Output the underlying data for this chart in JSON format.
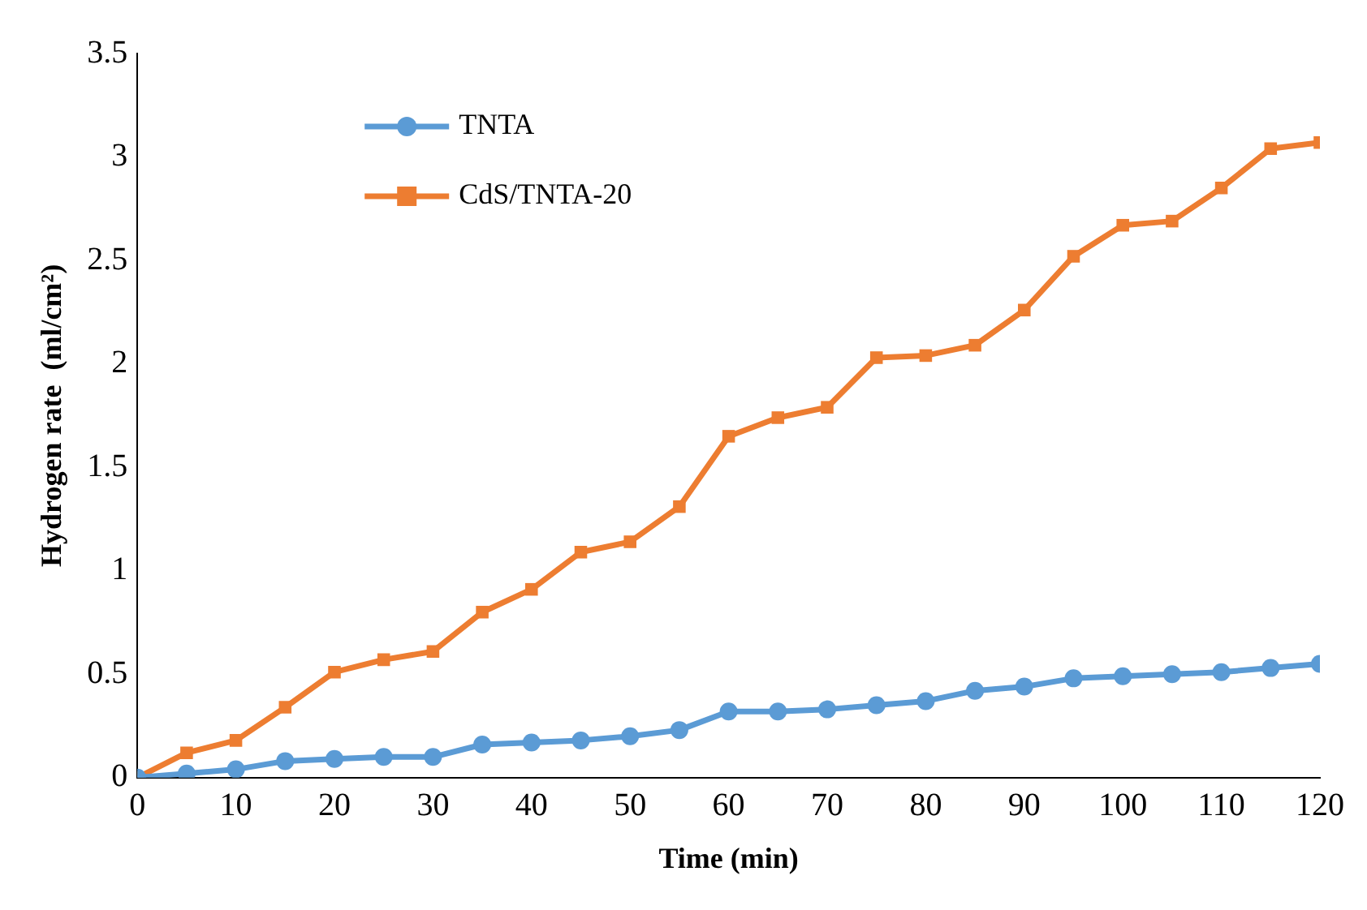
{
  "chart_data": {
    "type": "line",
    "xlabel": "Time (min)",
    "ylabel": "Hydrogen rate  (ml/cm²)",
    "x": [
      0,
      5,
      10,
      15,
      20,
      25,
      30,
      35,
      40,
      45,
      50,
      55,
      60,
      65,
      70,
      75,
      80,
      85,
      90,
      95,
      100,
      105,
      110,
      115,
      120
    ],
    "series": [
      {
        "name": "TNTA",
        "color": "#5b9bd5",
        "marker": "circle",
        "values": [
          0,
          0.02,
          0.04,
          0.08,
          0.09,
          0.1,
          0.1,
          0.16,
          0.17,
          0.18,
          0.2,
          0.23,
          0.32,
          0.32,
          0.33,
          0.35,
          0.37,
          0.42,
          0.44,
          0.48,
          0.49,
          0.5,
          0.51,
          0.53,
          0.55
        ]
      },
      {
        "name": "CdS/TNTA-20",
        "color": "#ed7d31",
        "marker": "square",
        "values": [
          0,
          0.12,
          0.18,
          0.34,
          0.51,
          0.57,
          0.61,
          0.8,
          0.91,
          1.09,
          1.14,
          1.31,
          1.65,
          1.74,
          1.79,
          2.03,
          2.04,
          2.09,
          2.26,
          2.52,
          2.67,
          2.69,
          2.85,
          3.04,
          3.07
        ]
      }
    ],
    "xlim": [
      0,
      120
    ],
    "xticks": [
      0,
      10,
      20,
      30,
      40,
      50,
      60,
      70,
      80,
      90,
      100,
      110,
      120
    ],
    "ylim": [
      0,
      3.5
    ],
    "yticks": [
      0,
      0.5,
      1,
      1.5,
      2,
      2.5,
      3,
      3.5
    ],
    "grid": false,
    "legend": "top left",
    "line_style": "solid"
  }
}
